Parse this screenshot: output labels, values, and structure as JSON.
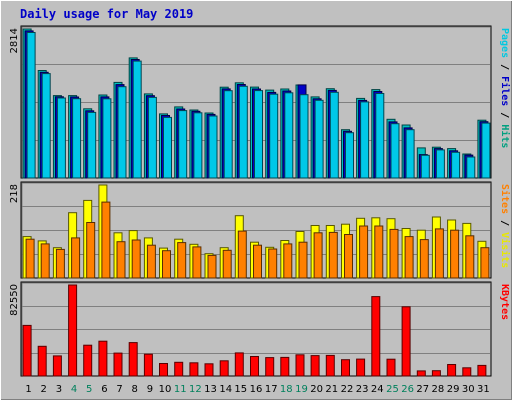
{
  "chart_data": {
    "type": "bar",
    "title": "Daily usage for May 2019",
    "days": [
      "1",
      "2",
      "3",
      "4",
      "5",
      "6",
      "7",
      "8",
      "9",
      "10",
      "11",
      "12",
      "13",
      "14",
      "15",
      "16",
      "17",
      "18",
      "19",
      "20",
      "21",
      "22",
      "23",
      "24",
      "25",
      "26",
      "27",
      "28",
      "29",
      "30",
      "31"
    ],
    "weekend_days": [
      "4",
      "5",
      "11",
      "12",
      "18",
      "19",
      "25",
      "26"
    ],
    "panels": [
      {
        "name": "hits",
        "ymax": 2814,
        "ymax_label": "2814",
        "side_label": [
          {
            "text": "Pages",
            "color": "#00c8e0"
          },
          {
            "text": " / ",
            "color": "#000000"
          },
          {
            "text": "Files",
            "color": "#0000c8"
          },
          {
            "text": " / ",
            "color": "#000000"
          },
          {
            "text": "Hits",
            "color": "#00a080"
          }
        ],
        "series": [
          {
            "name": "Hits",
            "color": "#00c0c0",
            "values": [
              2814,
              2031,
              1557,
              1557,
              1307,
              1567,
              1805,
              2269,
              1589,
              1211,
              1342,
              1285,
              1227,
              1715,
              1798,
              1716,
              1661,
              1681,
              1757,
              1532,
              1686,
              913,
              1503,
              1670,
              1109,
              1001,
              568,
              582,
              555,
              454,
              1091
            ]
          },
          {
            "name": "Files",
            "color": "#0000c8",
            "values": [
              2779,
              1997,
              1533,
              1530,
              1269,
              1531,
              1764,
              2238,
              1555,
              1181,
              1304,
              1259,
              1201,
              1682,
              1765,
              1681,
              1616,
              1644,
              1759,
              1495,
              1655,
              882,
              1466,
              1634,
              1059,
              946,
              441,
              555,
              513,
              432,
              1064
            ]
          },
          {
            "name": "Pages",
            "color": "#00c8e8",
            "values": [
              2748,
              1972,
              1511,
              1497,
              1239,
              1495,
              1725,
              2208,
              1522,
              1145,
              1272,
              1232,
              1171,
              1649,
              1731,
              1650,
              1583,
              1609,
              1574,
              1468,
              1619,
              856,
              1438,
              1596,
              1026,
              913,
              428,
              531,
              485,
              397,
              1036
            ]
          }
        ]
      },
      {
        "name": "visits",
        "ymax": 218,
        "ymax_label": "218",
        "side_label": [
          {
            "text": "Sites",
            "color": "#ff8000"
          },
          {
            "text": " / ",
            "color": "#000000"
          },
          {
            "text": "Visits",
            "color": "#e8e800"
          }
        ],
        "series": [
          {
            "name": "Visits",
            "color": "#ffff00",
            "values": [
              97,
              87,
              71,
              153,
              182,
              218,
              106,
              111,
              94,
              70,
              91,
              79,
              57,
              71,
              146,
              84,
              72,
              88,
              109,
              123,
              123,
              126,
              140,
              141,
              139,
              116,
              112,
              143,
              136,
              128,
              86
            ]
          },
          {
            "name": "Sites",
            "color": "#ff8000",
            "values": [
              91,
              80,
              67,
              94,
              130,
              178,
              85,
              89,
              77,
              64,
              83,
              73,
              53,
              65,
              110,
              77,
              68,
              80,
              84,
              106,
              107,
              102,
              122,
              122,
              114,
              97,
              90,
              115,
              112,
              99,
              71
            ]
          }
        ]
      },
      {
        "name": "kbytes",
        "ymax": 82550,
        "ymax_label": "82550",
        "side_label": [
          {
            "text": "KBytes",
            "color": "#ff0000"
          }
        ],
        "series": [
          {
            "name": "KBytes",
            "color": "#ff0000",
            "values": [
              45900,
              26900,
              18200,
              82550,
              27900,
              31600,
              20800,
              30300,
              19800,
              11300,
              12400,
              12000,
              11100,
              13800,
              21000,
              17700,
              16700,
              16900,
              19200,
              18500,
              18700,
              14800,
              15300,
              72000,
              15200,
              62800,
              4600,
              4800,
              10400,
              7400,
              9600
            ]
          }
        ]
      }
    ]
  }
}
